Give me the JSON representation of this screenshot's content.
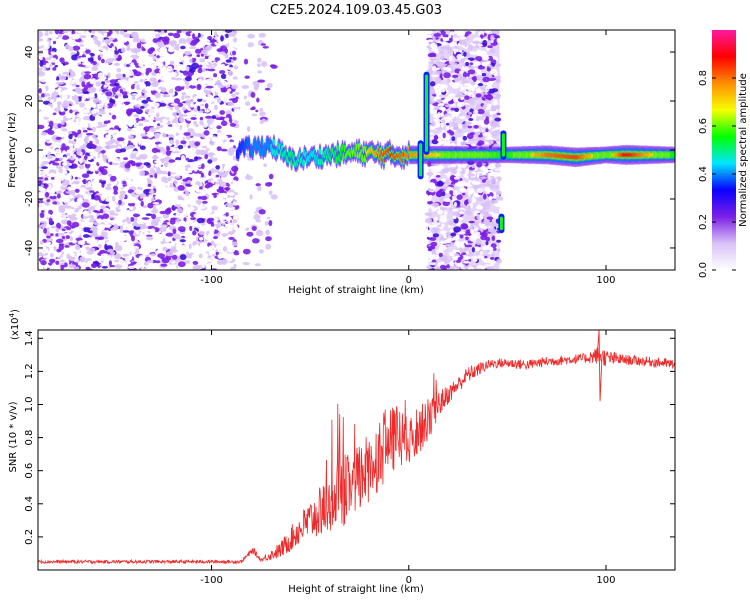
{
  "title": "C2E5.2024.109.03.45.G03",
  "colors": {
    "snr_line": "#ee2a2a",
    "noise_purple": "#7b1fe6",
    "noise_light": "#d9c2f7",
    "band_light": "#e6d5fb"
  },
  "colorbar": {
    "label": "Normalized spectral amplitude",
    "ticks": [
      "0.0",
      "0.2",
      "0.4",
      "0.6",
      "0.8"
    ],
    "tick_values": [
      0.0,
      0.2,
      0.4,
      0.6,
      0.8
    ],
    "range": [
      0,
      1
    ],
    "colormap": [
      "#ffffff",
      "#d9c2f7",
      "#7b1fe6",
      "#0a00ff",
      "#00e5ff",
      "#00ff00",
      "#f7ff00",
      "#ff8c00",
      "#ff0000",
      "#ff1aa0"
    ]
  },
  "chart_data": [
    {
      "type": "heatmap",
      "xlabel": "Height of straight line (km)",
      "ylabel": "Frequency (Hz)",
      "xlim": [
        -188,
        135
      ],
      "ylim": [
        -49,
        49
      ],
      "xticks": [
        -100,
        0,
        100
      ],
      "xtick_labels": [
        "-100",
        "0",
        "100"
      ],
      "yticks": [
        -40,
        -20,
        0,
        20,
        40
      ],
      "ytick_labels": [
        "-40",
        "-20",
        "0",
        "20",
        "40"
      ],
      "noise_regions": [
        {
          "x": [
            -188,
            -87
          ],
          "density": "high"
        },
        {
          "x": [
            -83,
            -68
          ],
          "density": "sparse"
        },
        {
          "x": [
            10,
            46
          ],
          "density": "high",
          "background": true
        }
      ],
      "signal_track": [
        {
          "x": -87,
          "f": 0,
          "amp": 0.35
        },
        {
          "x": -70,
          "f": 2,
          "amp": 0.45
        },
        {
          "x": -60,
          "f": -4,
          "amp": 0.5
        },
        {
          "x": -50,
          "f": -3,
          "amp": 0.45
        },
        {
          "x": -40,
          "f": -2,
          "amp": 0.5
        },
        {
          "x": -25,
          "f": -1,
          "amp": 0.65
        },
        {
          "x": -10,
          "f": -2,
          "amp": 0.85
        },
        {
          "x": 5,
          "f": -2,
          "amp": 0.75
        },
        {
          "x": 50,
          "f": -2,
          "amp": 0.55
        },
        {
          "x": 70,
          "f": -2,
          "amp": 0.8
        },
        {
          "x": 85,
          "f": -3,
          "amp": 0.85
        },
        {
          "x": 100,
          "f": -2,
          "amp": 0.6
        },
        {
          "x": 110,
          "f": -2,
          "amp": 0.9
        },
        {
          "x": 135,
          "f": -2,
          "amp": 0.55
        }
      ],
      "vertical_artifacts": [
        {
          "x": 6,
          "f": [
            -12,
            4
          ]
        },
        {
          "x": 9,
          "f": [
            -2,
            32
          ]
        },
        {
          "x": 48,
          "f": [
            -4,
            8
          ]
        },
        {
          "x": 47,
          "f": [
            -34,
            -26
          ]
        }
      ]
    },
    {
      "type": "line",
      "xlabel": "Height of straight line (km)",
      "ylabel": "SNR (10 * v/v)",
      "scale_label": "(x10",
      "scale_exponent": "4",
      "scale_close": ")",
      "xlim": [
        -188,
        135
      ],
      "ylim": [
        0,
        1.45
      ],
      "xticks": [
        -100,
        0,
        100
      ],
      "xtick_labels": [
        "-100",
        "0",
        "100"
      ],
      "yticks": [
        0.2,
        0.4,
        0.6,
        0.8,
        1.0,
        1.2,
        1.4
      ],
      "ytick_labels": [
        "0.2",
        "0.4",
        "0.6",
        "0.8",
        "1.0",
        "1.2",
        "1.4"
      ],
      "series": [
        {
          "x": [
            -188,
            -160,
            -130,
            -100,
            -85,
            -79,
            -75,
            -65,
            -55,
            -45,
            -35,
            -25,
            -15,
            -5,
            0,
            5,
            10,
            15,
            20,
            25,
            30,
            35,
            40,
            45,
            50,
            60,
            70,
            80,
            90,
            97,
            100,
            110,
            120,
            130,
            135
          ],
          "y": [
            0.05,
            0.05,
            0.05,
            0.05,
            0.05,
            0.12,
            0.06,
            0.12,
            0.25,
            0.35,
            0.45,
            0.55,
            0.7,
            0.82,
            0.75,
            0.85,
            0.9,
            1.0,
            1.06,
            1.12,
            1.18,
            1.21,
            1.24,
            1.25,
            1.25,
            1.24,
            1.26,
            1.27,
            1.28,
            1.3,
            1.28,
            1.27,
            1.26,
            1.25,
            1.24
          ],
          "noise_amplitude": [
            0.01,
            0.01,
            0.01,
            0.01,
            0.01,
            0.02,
            0.01,
            0.05,
            0.1,
            0.15,
            0.2,
            0.22,
            0.22,
            0.2,
            0.15,
            0.15,
            0.12,
            0.08,
            0.06,
            0.05,
            0.05,
            0.04,
            0.03,
            0.03,
            0.03,
            0.03,
            0.03,
            0.03,
            0.03,
            0.06,
            0.05,
            0.03,
            0.03,
            0.03,
            0.03
          ]
        }
      ]
    }
  ]
}
